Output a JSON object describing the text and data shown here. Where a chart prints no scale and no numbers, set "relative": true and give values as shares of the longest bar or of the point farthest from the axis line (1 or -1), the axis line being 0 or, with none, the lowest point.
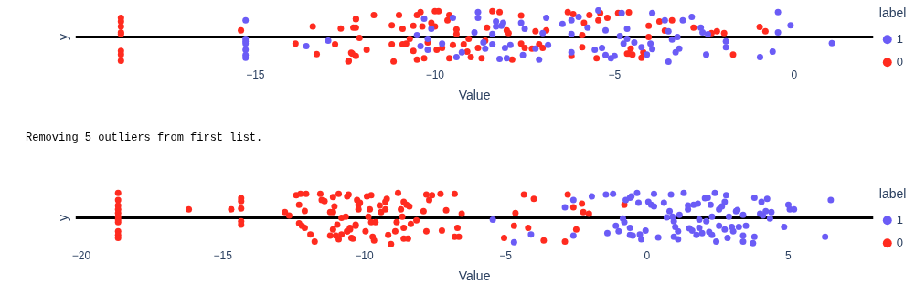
{
  "chart_data": [
    {
      "type": "scatter",
      "relative": true,
      "xlabel": "Value",
      "ylabel": "y",
      "legend_title": "label",
      "legend": "right",
      "marker": "circle",
      "xlim": [
        -20,
        2.2
      ],
      "xticks": [
        -15,
        -10,
        -5,
        0
      ],
      "series": [
        {
          "name": "1",
          "color": "#6b5cf6",
          "x": [
            -15.27,
            -15.27,
            -15.27,
            -15.27,
            -15.27,
            -15.27,
            -15.27,
            -13.58,
            -12.97,
            -10.5,
            -10.4,
            -10.3,
            -10.2,
            -10.2,
            -10.1,
            -9.8,
            -9.5,
            -9.4,
            -9.25,
            -8.9,
            -8.8,
            -8.8,
            -8.65,
            -8.6,
            -8.4,
            -8.4,
            -8.3,
            -8.3,
            -8.2,
            -8.15,
            -8.1,
            -8.05,
            -8.0,
            -7.9,
            -7.6,
            -7.55,
            -7.5,
            -7.2,
            -7.1,
            -7.0,
            -6.9,
            -6.85,
            -6.45,
            -6.2,
            -6.2,
            -6.2,
            -6.0,
            -5.75,
            -5.55,
            -5.45,
            -5.35,
            -5.25,
            -5.25,
            -5.1,
            -5.0,
            -4.85,
            -4.8,
            -4.75,
            -4.65,
            -4.65,
            -4.45,
            -4.25,
            -4.1,
            -4.0,
            -3.95,
            -3.95,
            -3.6,
            -3.5,
            -3.5,
            -3.4,
            -3.3,
            -3.25,
            -3.2,
            -3.1,
            -2.85,
            -2.6,
            -2.55,
            -2.45,
            -2.4,
            -1.9,
            -1.9,
            -0.95,
            -0.6,
            -0.45,
            -0.45,
            -0.1,
            1.05
          ],
          "values": [
            0.63,
            -0.07,
            -0.17,
            -0.25,
            -0.49,
            -0.69,
            -0.79,
            -0.35,
            -0.14,
            0.07,
            -0.35,
            0.69,
            -0.07,
            -0.49,
            0.31,
            -0.25,
            0.72,
            -0.76,
            -0.58,
            0.17,
            0.94,
            0.72,
            -0.21,
            -0.44,
            0.11,
            -0.28,
            0.39,
            0.58,
            -0.83,
            0.42,
            0.53,
            -0.42,
            -0.81,
            -0.31,
            0.53,
            -0.69,
            0.31,
            -0.44,
            -0.86,
            0.14,
            0.72,
            -0.31,
            0.49,
            0.63,
            -0.58,
            0.11,
            0.76,
            0.35,
            -0.49,
            1.0,
            -0.42,
            0.25,
            -0.69,
            -0.81,
            -0.72,
            0.03,
            0.9,
            -0.25,
            0.31,
            -0.07,
            -0.21,
            -0.39,
            -0.67,
            -0.25,
            -0.46,
            0.9,
            0.63,
            -0.94,
            0.21,
            -0.1,
            -0.58,
            0.0,
            -0.44,
            0.63,
            0.76,
            0.35,
            0.17,
            -0.67,
            0.1,
            -0.17,
            -0.39,
            -0.76,
            -0.56,
            0.17,
            0.94,
            0.44,
            -0.24
          ]
        },
        {
          "name": "0",
          "color": "#ff2b1f",
          "x": [
            -18.74,
            -18.74,
            -18.74,
            -18.74,
            -18.74,
            -18.74,
            -18.74,
            -18.74,
            -15.4,
            -13.88,
            -13.4,
            -13.29,
            -12.78,
            -12.62,
            -12.41,
            -12.33,
            -12.27,
            -12.2,
            -12.4,
            -12.3,
            -12.2,
            -12.2,
            -12.2,
            -12.1,
            -11.9,
            -11.7,
            -11.2,
            -11.2,
            -11.15,
            -11.0,
            -10.9,
            -10.9,
            -10.8,
            -10.7,
            -10.6,
            -10.6,
            -10.5,
            -10.5,
            -10.4,
            -10.35,
            -10.3,
            -10.2,
            -10.1,
            -10.0,
            -10.0,
            -9.95,
            -9.9,
            -9.8,
            -9.65,
            -9.6,
            -9.6,
            -9.5,
            -9.4,
            -9.4,
            -9.2,
            -9.1,
            -9.06,
            -9.0,
            -8.8,
            -8.7,
            -8.6,
            -8.55,
            -8.4,
            -8.2,
            -8.0,
            -7.95,
            -7.85,
            -7.6,
            -7.6,
            -7.5,
            -7.3,
            -7.2,
            -7.1,
            -7.0,
            -6.9,
            -6.3,
            -6.2,
            -6.15,
            -5.9,
            -5.9,
            -5.85,
            -5.7,
            -5.5,
            -5.45,
            -5.4,
            -5.2,
            -4.9,
            -4.65,
            -4.55,
            -4.6,
            -4.6,
            -4.5,
            -4.25,
            -4.2,
            -4.05,
            -4.05,
            -3.75,
            -3.6,
            -3.4,
            -2.8,
            -2.3,
            -2.15,
            -1.95,
            -1.7,
            -0.96,
            -0.8
          ],
          "values": [
            0.72,
            0.58,
            0.39,
            0.17,
            0.11,
            -0.53,
            -0.67,
            -0.9,
            0.25,
            -0.25,
            0.39,
            -0.65,
            -0.28,
            0.32,
            -0.93,
            -0.6,
            0.35,
            0.69,
            -0.9,
            -0.63,
            0.35,
            0.67,
            -0.72,
            -0.04,
            -0.49,
            0.83,
            -0.28,
            0.44,
            -0.93,
            0.83,
            -0.28,
            0.31,
            -0.25,
            -0.07,
            0.42,
            -0.53,
            -0.86,
            0.83,
            0.94,
            0.39,
            -0.81,
            -0.21,
            0.53,
            0.39,
            0.97,
            -0.49,
            0.97,
            -0.42,
            0.63,
            0.83,
            -0.81,
            -0.31,
            0.11,
            0.28,
            -0.28,
            -0.56,
            -0.07,
            -0.76,
            -0.42,
            -0.81,
            -0.14,
            0.35,
            0.97,
            0.94,
            0.25,
            0.14,
            -0.86,
            -0.25,
            0.81,
            -0.42,
            -0.44,
            0.21,
            -0.28,
            -0.42,
            0.25,
            0.94,
            -0.72,
            0.86,
            -0.39,
            0.07,
            0.53,
            0.83,
            -0.81,
            0.63,
            0.9,
            0.72,
            0.9,
            -0.63,
            -0.44,
            0.93,
            -0.63,
            -0.67,
            -0.79,
            -0.58,
            0.42,
            0.0,
            0.58,
            0.24,
            0.63,
            0.35,
            0.14,
            0.21,
            0.14,
            -0.67,
            0.38,
            0.21
          ]
        }
      ]
    },
    {
      "type": "scatter",
      "relative": true,
      "xlabel": "Value",
      "ylabel": "y",
      "legend_title": "label",
      "legend": "right",
      "marker": "circle",
      "xlim": [
        -20.2,
        8
      ],
      "xticks": [
        -20,
        -15,
        -10,
        -5,
        0,
        5
      ],
      "annotations": [
        "Removing 5 outliers from first list."
      ],
      "series": [
        {
          "name": "1",
          "color": "#6b5cf6",
          "x": [
            -5.45,
            -4.7,
            -4.1,
            -2.9,
            -2.6,
            -1.95,
            -2.6,
            -1.45,
            -1.2,
            -1.4,
            -1.1,
            -1.0,
            -0.85,
            -0.8,
            -0.75,
            -0.6,
            -0.6,
            -0.6,
            -0.55,
            -0.35,
            -0.5,
            -0.25,
            -0.2,
            -0.05,
            -0.3,
            0.05,
            0.15,
            0.25,
            0.25,
            0.4,
            0.6,
            0.7,
            0.8,
            0.85,
            0.9,
            0.95,
            1.0,
            1.1,
            1.1,
            0.95,
            1.15,
            1.3,
            1.45,
            1.45,
            1.65,
            1.8,
            1.5,
            1.6,
            1.75,
            1.85,
            1.95,
            1.85,
            2.05,
            2.15,
            2.4,
            2.25,
            2.3,
            2.1,
            2.2,
            2.3,
            2.45,
            2.55,
            2.55,
            2.65,
            2.8,
            2.75,
            2.75,
            2.85,
            2.9,
            3.0,
            3.05,
            3.15,
            3.2,
            3.4,
            3.25,
            3.4,
            3.4,
            3.5,
            3.75,
            3.8,
            3.8,
            4.0,
            4.05,
            4.25,
            4.1,
            4.2,
            4.35,
            4.4,
            4.85,
            5.0,
            5.05,
            5.2,
            6.3,
            6.5
          ],
          "values": [
            -0.07,
            -0.93,
            -0.63,
            0.39,
            0.67,
            0.81,
            -0.68,
            0.88,
            0.9,
            -0.58,
            -0.31,
            -0.51,
            -0.03,
            -0.17,
            0.67,
            0.76,
            -0.38,
            -0.65,
            0.81,
            0.94,
            -0.68,
            -0.63,
            -0.82,
            -0.49,
            0.57,
            0.6,
            0.49,
            0.9,
            0.43,
            -0.75,
            0.57,
            0.01,
            0.25,
            0.88,
            0.04,
            -0.13,
            -0.35,
            -0.51,
            -0.82,
            -0.72,
            0.11,
            0.94,
            0.46,
            0.32,
            0.49,
            0.53,
            -0.4,
            -0.49,
            -0.65,
            -0.38,
            -0.58,
            -0.07,
            0.74,
            0.76,
            0.94,
            0.49,
            0.04,
            -0.13,
            -0.54,
            -0.65,
            -0.9,
            -0.31,
            0.32,
            0.43,
            0.85,
            0.6,
            -0.44,
            -0.76,
            0.04,
            -0.35,
            -0.51,
            0.25,
            0.29,
            0.11,
            -0.35,
            -0.68,
            -0.9,
            -0.31,
            -0.96,
            -0.72,
            0.76,
            0.15,
            0.6,
            0.71,
            0.08,
            0.25,
            -0.03,
            0.21,
            -0.35,
            0.49,
            0.32,
            0.32,
            -0.72,
            0.67
          ]
        },
        {
          "name": "0",
          "color": "#ff2b1f",
          "x": [
            -18.7,
            -18.7,
            -18.7,
            -18.7,
            -18.7,
            -18.7,
            -18.7,
            -18.7,
            -18.7,
            -18.7,
            -18.7,
            -16.2,
            -14.7,
            -14.35,
            -14.35,
            -14.35,
            -14.35,
            -14.35,
            -12.8,
            -12.65,
            -12.4,
            -12.25,
            -12.05,
            -12.3,
            -12.3,
            -12.2,
            -12.1,
            -12.1,
            -11.9,
            -11.75,
            -11.55,
            -11.5,
            -11.4,
            -11.1,
            -10.9,
            -10.6,
            -10.55,
            -11.05,
            -11.1,
            -11.2,
            -10.8,
            -10.95,
            -11.1,
            -11.2,
            -11.0,
            -10.9,
            -10.8,
            -10.6,
            -10.5,
            -10.45,
            -10.65,
            -10.6,
            -10.5,
            -10.3,
            -10.3,
            -10.4,
            -10.25,
            -10.2,
            -10.2,
            -10.15,
            -9.95,
            -9.9,
            -9.75,
            -9.85,
            -9.8,
            -9.75,
            -9.6,
            -9.7,
            -9.65,
            -9.45,
            -9.4,
            -9.25,
            -9.2,
            -9.25,
            -9.15,
            -9.05,
            -8.9,
            -8.85,
            -8.8,
            -8.7,
            -8.65,
            -8.6,
            -8.5,
            -8.4,
            -8.6,
            -8.45,
            -8.6,
            -8.35,
            -8.15,
            -7.9,
            -7.8,
            -7.7,
            -7.6,
            -7.8,
            -7.3,
            -7.25,
            -7.1,
            -6.8,
            -6.7,
            -6.8,
            -6.65,
            -6.55,
            -5.05,
            -4.7,
            -4.65,
            -4.35,
            -4.2,
            -4.0,
            -3.65,
            -2.9,
            -2.8,
            -2.6,
            -2.5,
            -2.3,
            -2.25,
            -2.05,
            -0.8
          ],
          "values": [
            0.94,
            0.67,
            0.46,
            0.32,
            0.18,
            0.04,
            -0.07,
            -0.17,
            -0.51,
            -0.65,
            -0.76,
            0.32,
            0.32,
            0.74,
            0.63,
            0.35,
            -0.13,
            -0.26,
            0.21,
            0.08,
            0.85,
            0.9,
            0.9,
            0.49,
            -0.21,
            -0.31,
            -0.38,
            0.26,
            -0.63,
            -0.9,
            0.9,
            0.67,
            0.63,
            0.78,
            0.9,
            0.81,
            0.88,
            0.43,
            0.21,
            0.21,
            0.0,
            -0.26,
            -0.44,
            -0.68,
            -0.68,
            -0.82,
            -0.63,
            -0.51,
            -0.38,
            -0.76,
            0.04,
            -0.51,
            -0.44,
            -0.26,
            -0.31,
            -0.79,
            0.67,
            0.49,
            0.32,
            0.57,
            -0.51,
            0.81,
            0.85,
            0.04,
            0.32,
            -0.17,
            -0.17,
            -0.72,
            -0.86,
            0.46,
            0.21,
            0.32,
            0.71,
            0.6,
            -0.65,
            -1.0,
            -0.51,
            -0.17,
            0.94,
            0.32,
            0.04,
            0.6,
            0.49,
            0.43,
            -0.79,
            -0.79,
            -0.38,
            -0.24,
            -0.1,
            0.25,
            0.88,
            0.67,
            0.85,
            -0.51,
            0.9,
            -0.49,
            0.28,
            0.9,
            -0.38,
            -0.72,
            -0.72,
            0.15,
            -0.76,
            -0.31,
            0.18,
            0.88,
            -0.38,
            0.71,
            -0.86,
            -0.9,
            0.88,
            0.39,
            -0.44,
            0.53,
            0.21,
            0.15,
            0.49
          ]
        }
      ]
    }
  ]
}
